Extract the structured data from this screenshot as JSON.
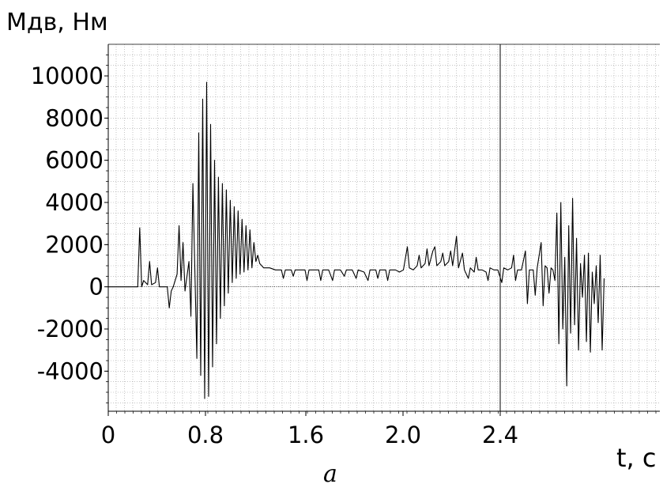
{
  "chart_data": {
    "type": "line",
    "ylabel": "Мдв, Нм",
    "xlabel": "t, c",
    "caption": "a",
    "x_ticks": [
      "0",
      "0.8",
      "1.6",
      "2.0",
      "2.4"
    ],
    "y_ticks": [
      "10000",
      "8000",
      "6000",
      "4000",
      "2000",
      "0",
      "-2000",
      "-4000"
    ],
    "y_tick_values": [
      10000,
      8000,
      6000,
      4000,
      2000,
      0,
      -2000,
      -4000
    ],
    "ylim": [
      -5900,
      11500
    ],
    "grid": true,
    "colors": {
      "series": "#000000",
      "grid": "#a0a0a0",
      "axes": "#000000"
    },
    "series": [
      {
        "values": [
          [
            0.0,
            0
          ],
          [
            0.14,
            0
          ],
          [
            0.15,
            0
          ],
          [
            0.16,
            2800
          ],
          [
            0.17,
            0
          ],
          [
            0.18,
            300
          ],
          [
            0.2,
            100
          ],
          [
            0.21,
            1200
          ],
          [
            0.22,
            100
          ],
          [
            0.24,
            200
          ],
          [
            0.25,
            900
          ],
          [
            0.26,
            0
          ],
          [
            0.28,
            0
          ],
          [
            0.3,
            0
          ],
          [
            0.31,
            -1000
          ],
          [
            0.32,
            -200
          ],
          [
            0.33,
            0
          ],
          [
            0.35,
            600
          ],
          [
            0.36,
            2900
          ],
          [
            0.37,
            300
          ],
          [
            0.38,
            2100
          ],
          [
            0.39,
            -200
          ],
          [
            0.41,
            1200
          ],
          [
            0.42,
            -1400
          ],
          [
            0.43,
            4900
          ],
          [
            0.45,
            -3400
          ],
          [
            0.46,
            7300
          ],
          [
            0.47,
            -4200
          ],
          [
            0.48,
            8900
          ],
          [
            0.49,
            -5300
          ],
          [
            0.5,
            9700
          ],
          [
            0.51,
            -5200
          ],
          [
            0.52,
            7700
          ],
          [
            0.53,
            -3800
          ],
          [
            0.54,
            6000
          ],
          [
            0.55,
            -2700
          ],
          [
            0.56,
            5200
          ],
          [
            0.57,
            -1500
          ],
          [
            0.58,
            4900
          ],
          [
            0.59,
            -900
          ],
          [
            0.6,
            4600
          ],
          [
            0.61,
            -300
          ],
          [
            0.62,
            4100
          ],
          [
            0.63,
            200
          ],
          [
            0.64,
            3800
          ],
          [
            0.65,
            400
          ],
          [
            0.66,
            3600
          ],
          [
            0.67,
            600
          ],
          [
            0.68,
            3200
          ],
          [
            0.69,
            700
          ],
          [
            0.7,
            2900
          ],
          [
            0.71,
            800
          ],
          [
            0.72,
            2700
          ],
          [
            0.73,
            900
          ],
          [
            0.74,
            2100
          ],
          [
            0.75,
            1200
          ],
          [
            0.76,
            1500
          ],
          [
            0.77,
            1100
          ],
          [
            0.79,
            900
          ],
          [
            0.82,
            900
          ],
          [
            0.85,
            800
          ],
          [
            0.88,
            800
          ],
          [
            0.89,
            400
          ],
          [
            0.9,
            800
          ],
          [
            0.93,
            800
          ],
          [
            0.94,
            500
          ],
          [
            0.95,
            800
          ],
          [
            0.98,
            800
          ],
          [
            1.0,
            800
          ],
          [
            1.01,
            300
          ],
          [
            1.02,
            800
          ],
          [
            1.05,
            800
          ],
          [
            1.07,
            800
          ],
          [
            1.08,
            300
          ],
          [
            1.09,
            800
          ],
          [
            1.12,
            800
          ],
          [
            1.14,
            300
          ],
          [
            1.15,
            800
          ],
          [
            1.18,
            800
          ],
          [
            1.2,
            500
          ],
          [
            1.21,
            800
          ],
          [
            1.24,
            800
          ],
          [
            1.26,
            400
          ],
          [
            1.27,
            800
          ],
          [
            1.3,
            700
          ],
          [
            1.32,
            300
          ],
          [
            1.33,
            800
          ],
          [
            1.36,
            800
          ],
          [
            1.37,
            400
          ],
          [
            1.38,
            800
          ],
          [
            1.41,
            800
          ],
          [
            1.42,
            300
          ],
          [
            1.43,
            800
          ],
          [
            1.46,
            800
          ],
          [
            1.48,
            700
          ],
          [
            1.5,
            800
          ],
          [
            1.52,
            1900
          ],
          [
            1.53,
            900
          ],
          [
            1.55,
            800
          ],
          [
            1.57,
            1000
          ],
          [
            1.58,
            1500
          ],
          [
            1.59,
            900
          ],
          [
            1.61,
            1100
          ],
          [
            1.62,
            1800
          ],
          [
            1.63,
            1000
          ],
          [
            1.65,
            1700
          ],
          [
            1.66,
            1900
          ],
          [
            1.67,
            1000
          ],
          [
            1.69,
            1200
          ],
          [
            1.7,
            1600
          ],
          [
            1.71,
            1000
          ],
          [
            1.73,
            1200
          ],
          [
            1.74,
            1700
          ],
          [
            1.75,
            1000
          ],
          [
            1.77,
            2400
          ],
          [
            1.78,
            900
          ],
          [
            1.8,
            1600
          ],
          [
            1.81,
            800
          ],
          [
            1.83,
            400
          ],
          [
            1.84,
            900
          ],
          [
            1.86,
            700
          ],
          [
            1.87,
            1400
          ],
          [
            1.88,
            800
          ],
          [
            1.9,
            800
          ],
          [
            1.92,
            700
          ],
          [
            1.93,
            300
          ],
          [
            1.94,
            900
          ],
          [
            1.96,
            800
          ],
          [
            1.98,
            800
          ],
          [
            2.0,
            200
          ],
          [
            2.01,
            900
          ],
          [
            2.03,
            800
          ],
          [
            2.05,
            900
          ],
          [
            2.06,
            1500
          ],
          [
            2.07,
            300
          ],
          [
            2.08,
            800
          ],
          [
            2.1,
            800
          ],
          [
            2.12,
            1700
          ],
          [
            2.13,
            -800
          ],
          [
            2.14,
            800
          ],
          [
            2.16,
            800
          ],
          [
            2.17,
            -400
          ],
          [
            2.18,
            900
          ],
          [
            2.2,
            2100
          ],
          [
            2.21,
            -900
          ],
          [
            2.22,
            1000
          ],
          [
            2.23,
            900
          ],
          [
            2.24,
            -300
          ],
          [
            2.25,
            900
          ],
          [
            2.26,
            800
          ],
          [
            2.27,
            300
          ],
          [
            2.28,
            3500
          ],
          [
            2.29,
            -2700
          ],
          [
            2.3,
            4000
          ],
          [
            2.31,
            -2000
          ],
          [
            2.32,
            1400
          ],
          [
            2.33,
            -4700
          ],
          [
            2.34,
            2900
          ],
          [
            2.35,
            -2200
          ],
          [
            2.36,
            4200
          ],
          [
            2.37,
            -1800
          ],
          [
            2.38,
            2300
          ],
          [
            2.39,
            -3000
          ],
          [
            2.4,
            1100
          ],
          [
            2.41,
            -500
          ],
          [
            2.42,
            1500
          ],
          [
            2.43,
            -2600
          ],
          [
            2.44,
            1600
          ],
          [
            2.45,
            -3100
          ],
          [
            2.46,
            700
          ],
          [
            2.47,
            -800
          ],
          [
            2.48,
            1000
          ],
          [
            2.49,
            -1700
          ],
          [
            2.5,
            1500
          ],
          [
            2.51,
            -3000
          ],
          [
            2.52,
            400
          ]
        ]
      }
    ]
  }
}
